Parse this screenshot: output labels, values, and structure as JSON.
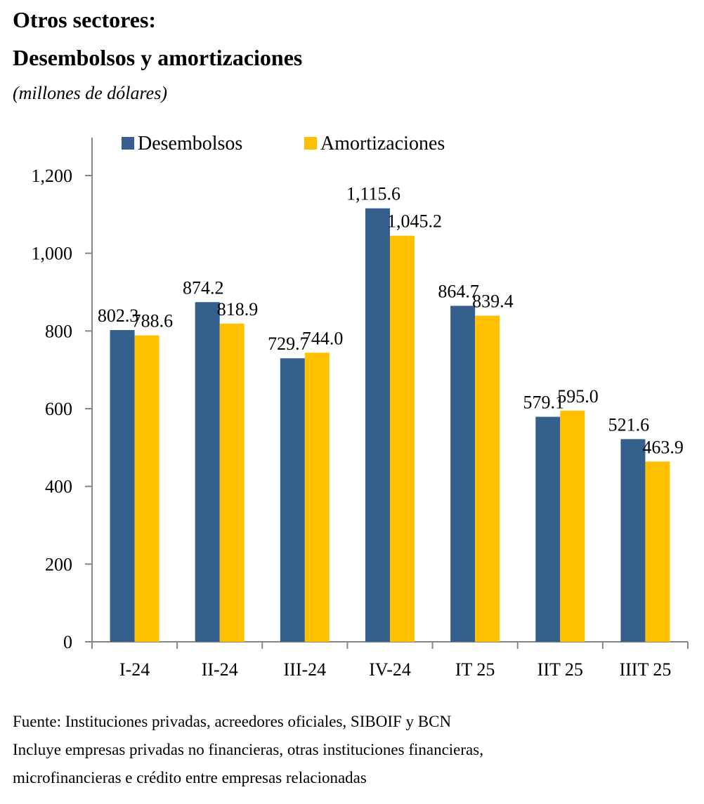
{
  "header": {
    "title_line1": "Otros sectores:",
    "title_line2": "Desembolsos y amortizaciones",
    "subtitle": "(millones de dólares)"
  },
  "notes": {
    "source": "Fuente:  Instituciones privadas, acreedores oficiales, SIBOIF y BCN",
    "line2": "Incluye empresas privadas no financieras, otras instituciones financieras,",
    "line3": "microfinancieras e crédito entre empresas relacionadas"
  },
  "chart_data": {
    "type": "bar",
    "title": "Otros sectores: Desembolsos y amortizaciones",
    "subtitle": "(millones de dólares)",
    "xlabel": "",
    "ylabel": "",
    "categories": [
      "I-24",
      "II-24",
      "III-24",
      "IV-24",
      "IT 25",
      "IIT 25",
      "IIIT 25"
    ],
    "series": [
      {
        "name": "Desembolsos",
        "color": "#355F8D",
        "values": [
          802.3,
          874.2,
          729.7,
          1115.6,
          864.7,
          579.1,
          521.6
        ],
        "labels": [
          "802.3",
          "874.2",
          "729.7",
          "1,115.6",
          "864.7",
          "579.1",
          "521.6"
        ]
      },
      {
        "name": "Amortizaciones",
        "color": "#FFC000",
        "values": [
          788.6,
          818.9,
          744.0,
          1045.2,
          839.4,
          595.0,
          463.9
        ],
        "labels": [
          "788.6",
          "818.9",
          "744.0",
          "1,045.2",
          "839.4",
          "595.0",
          "463.9"
        ]
      }
    ],
    "ylim": [
      0,
      1200
    ],
    "yticks": [
      0,
      200,
      400,
      600,
      800,
      1000,
      1200
    ],
    "ytick_labels": [
      "0",
      "200",
      "400",
      "600",
      "800",
      "1,000",
      "1,200"
    ],
    "grid": false,
    "legend": "top"
  }
}
